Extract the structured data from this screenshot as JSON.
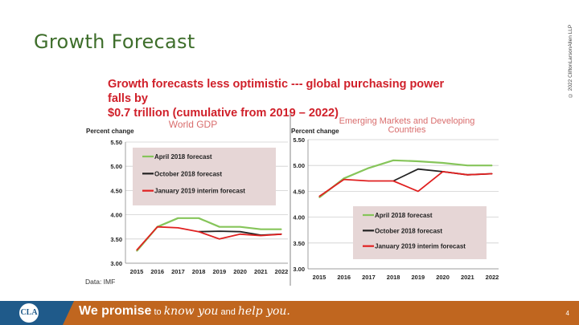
{
  "slide": {
    "title": "Growth Forecast",
    "copyright": "© 2022 CliftonLarsonAllen LLP",
    "headline_line1": "Growth forecasts less optimistic --- global purchasing power falls by",
    "headline_line2": "$0.7 trillion (cumulative from 2019 – 2022)",
    "source": "Data: IMF"
  },
  "footer": {
    "logo_text": "CLA",
    "promise_bold": "We promise",
    "promise_to": " to ",
    "promise_know": "know you",
    "promise_and": " and ",
    "promise_help": "help you.",
    "page_number": "4",
    "bar_color": "#c0661f",
    "logo_color": "#1f5a8a"
  },
  "chart_data": [
    {
      "type": "line",
      "title": "World GDP",
      "ylabel": "Percent change",
      "xlabel": "",
      "x": [
        2015,
        2016,
        2017,
        2018,
        2019,
        2020,
        2021,
        2022
      ],
      "y_ticks": [
        "3.00",
        "3.50",
        "4.00",
        "4.50",
        "5.00",
        "5.50"
      ],
      "ylim": [
        3.0,
        5.5
      ],
      "grid": true,
      "legend_position": "top-left",
      "series": [
        {
          "name": "April 2018 forecast",
          "color": "#86c55a",
          "x": [
            2015,
            2016,
            2017,
            2018,
            2019,
            2020,
            2021,
            2022
          ],
          "values": [
            3.25,
            3.75,
            3.93,
            3.93,
            3.75,
            3.75,
            3.7,
            3.7
          ]
        },
        {
          "name": "October 2018 forecast",
          "color": "#222222",
          "x": [
            2018,
            2019,
            2020,
            2021,
            2022
          ],
          "values": [
            3.65,
            3.66,
            3.65,
            3.58,
            3.6
          ]
        },
        {
          "name": "January 2019 interim forecast",
          "color": "#e02020",
          "x": [
            2015,
            2016,
            2017,
            2018,
            2019,
            2020,
            2021,
            2022
          ],
          "values": [
            3.27,
            3.75,
            3.73,
            3.65,
            3.5,
            3.6,
            3.57,
            3.6
          ]
        }
      ]
    },
    {
      "type": "line",
      "title": "Emerging Markets and Developing Countries",
      "ylabel": "Percent change",
      "xlabel": "",
      "x": [
        2015,
        2016,
        2017,
        2018,
        2019,
        2020,
        2021,
        2022
      ],
      "y_ticks": [
        "3.00",
        "3.50",
        "4.00",
        "4.50",
        "5.00",
        "5.50"
      ],
      "ylim": [
        3.0,
        5.5
      ],
      "grid": true,
      "legend_position": "bottom-right",
      "series": [
        {
          "name": "April 2018 forecast",
          "color": "#86c55a",
          "x": [
            2015,
            2016,
            2017,
            2018,
            2019,
            2020,
            2021,
            2022
          ],
          "values": [
            4.38,
            4.75,
            4.95,
            5.1,
            5.08,
            5.05,
            5.0,
            5.0
          ]
        },
        {
          "name": "October 2018 forecast",
          "color": "#222222",
          "x": [
            2018,
            2019,
            2020,
            2021,
            2022
          ],
          "values": [
            4.7,
            4.93,
            4.88,
            4.82,
            4.84
          ]
        },
        {
          "name": "January 2019 interim forecast",
          "color": "#e02020",
          "x": [
            2015,
            2016,
            2017,
            2018,
            2019,
            2020,
            2021,
            2022
          ],
          "values": [
            4.4,
            4.73,
            4.7,
            4.7,
            4.5,
            4.88,
            4.82,
            4.84
          ]
        }
      ]
    }
  ]
}
